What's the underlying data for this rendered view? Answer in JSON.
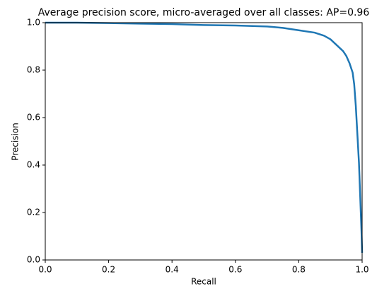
{
  "chart_data": {
    "type": "line",
    "title": "Average precision score, micro-averaged over all classes: AP=0.96",
    "xlabel": "Recall",
    "ylabel": "Precision",
    "x": [
      0,
      0.1,
      0.2,
      0.3,
      0.4,
      0.5,
      0.6,
      0.7,
      0.75,
      0.8,
      0.85,
      0.88,
      0.9,
      0.92,
      0.94,
      0.95,
      0.96,
      0.97,
      0.975,
      0.98,
      0.985,
      0.99,
      0.995,
      0.998,
      1.0
    ],
    "series": [
      {
        "color": "#1f77b4",
        "values": [
          1.0,
          1.0,
          0.998,
          0.996,
          0.994,
          0.99,
          0.988,
          0.984,
          0.978,
          0.968,
          0.958,
          0.945,
          0.93,
          0.905,
          0.88,
          0.86,
          0.83,
          0.79,
          0.74,
          0.65,
          0.53,
          0.41,
          0.23,
          0.12,
          0.03
        ]
      }
    ],
    "xlim": [
      0,
      1
    ],
    "ylim": [
      0,
      1
    ],
    "xticks": [
      {
        "value": 0,
        "label": "0.0"
      },
      0.2,
      0.4,
      0.6,
      0.8,
      {
        "value": 1,
        "label": "1.0"
      }
    ],
    "yticks": [
      {
        "value": 0,
        "label": "0.0"
      },
      0.2,
      0.4,
      0.6,
      0.8,
      {
        "value": 1,
        "label": "1.0"
      }
    ],
    "grid": false
  }
}
